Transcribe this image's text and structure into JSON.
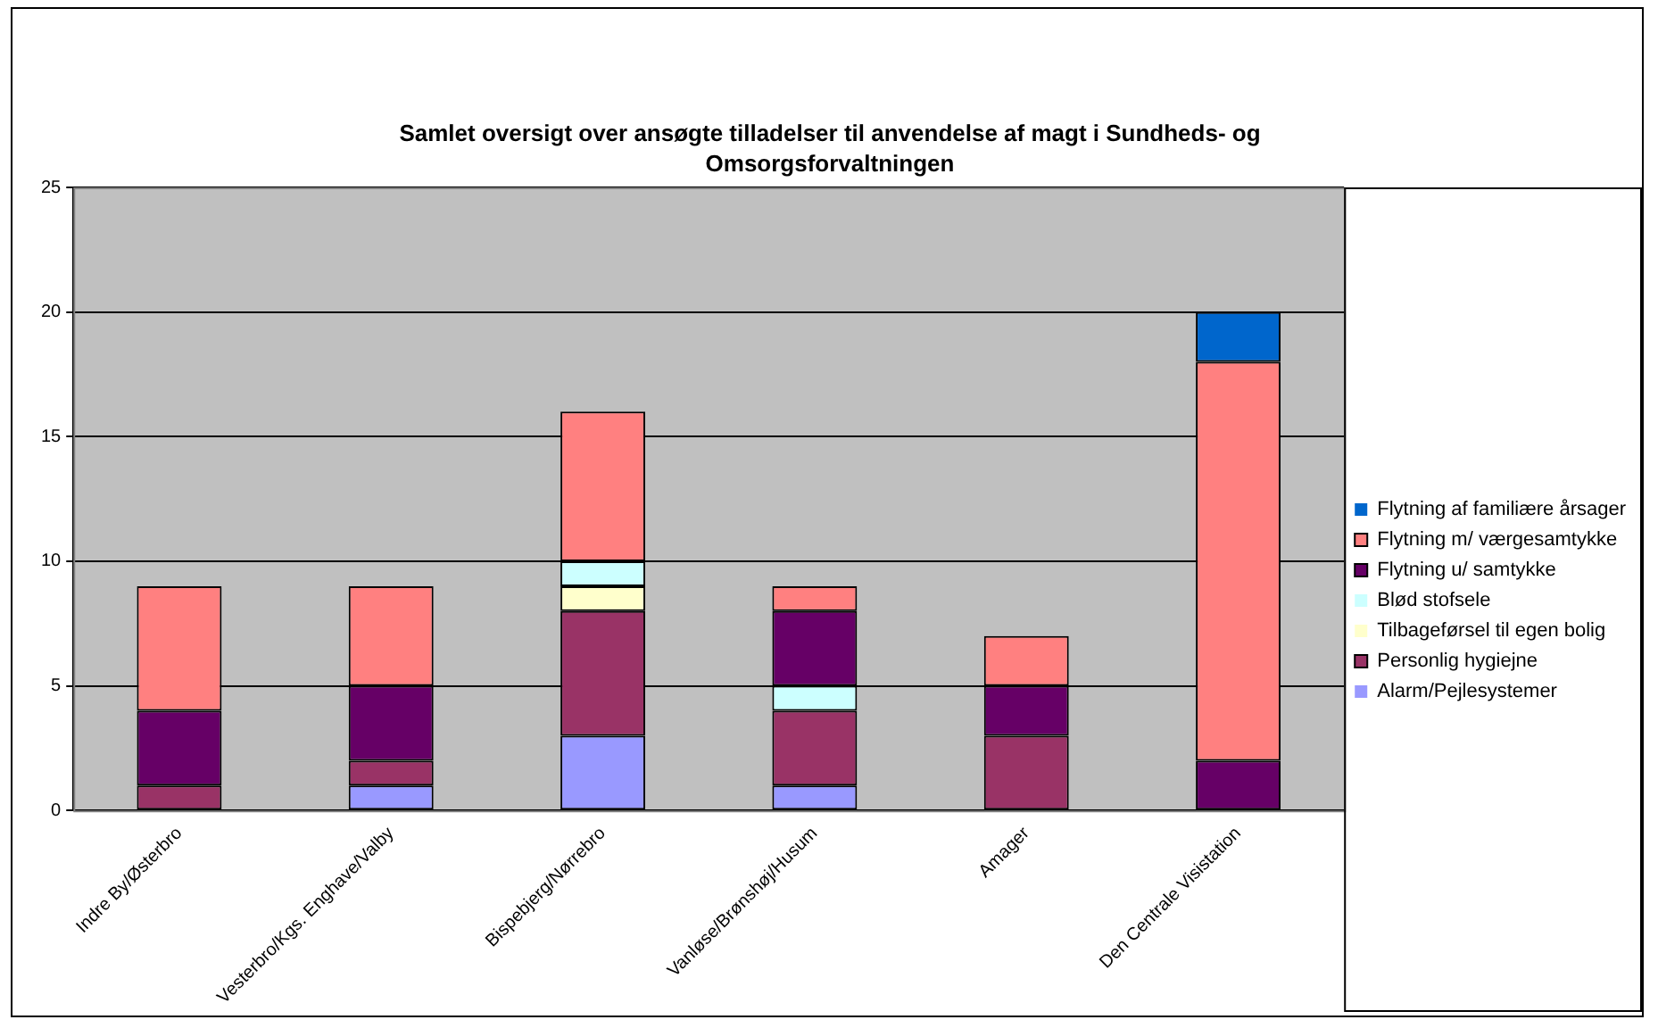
{
  "chart_data": {
    "type": "bar",
    "title": "Samlet oversigt over ansøgte tilladelser til anvendelse af magt i Sundheds- og Omsorgsforvaltningen",
    "categories": [
      "Indre By/Østerbro",
      "Vesterbro/Kgs. Enghave/Valby",
      "Bispebjerg/Nørrebro",
      "Vanløse/Brønshøj/Husum",
      "Amager",
      "Den Centrale Visistation"
    ],
    "stacked": true,
    "series": [
      {
        "name": "Alarm/Pejlesystemer",
        "color": "#9999ff",
        "values": [
          0,
          1,
          3,
          1,
          0,
          0
        ]
      },
      {
        "name": "Personlig hygiejne",
        "color": "#993366",
        "values": [
          1,
          1,
          5,
          3,
          3,
          0
        ]
      },
      {
        "name": "Tilbageførsel til egen bolig",
        "color": "#ffffcc",
        "values": [
          0,
          0,
          1,
          0,
          0,
          0
        ]
      },
      {
        "name": "Blød stofsele",
        "color": "#ccffff",
        "values": [
          0,
          0,
          1,
          1,
          0,
          0
        ]
      },
      {
        "name": "Flytning u/ samtykke",
        "color": "#660066",
        "values": [
          3,
          3,
          0,
          3,
          2,
          2
        ]
      },
      {
        "name": "Flytning m/ værgesamtykke",
        "color": "#ff8080",
        "values": [
          5,
          4,
          6,
          1,
          2,
          16
        ]
      },
      {
        "name": "Flytning af familiære årsager",
        "color": "#0066cc",
        "values": [
          0,
          0,
          0,
          0,
          0,
          2
        ]
      }
    ],
    "ylim": [
      0,
      25
    ],
    "yticks": [
      0,
      5,
      10,
      15,
      20,
      25
    ],
    "grid": "y",
    "legend": "right"
  }
}
